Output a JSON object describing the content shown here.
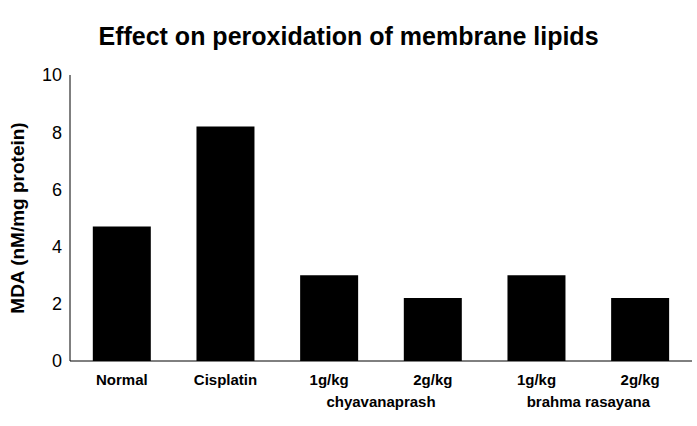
{
  "chart_data": {
    "type": "bar",
    "title": "Effect on peroxidation of membrane lipids",
    "y_label": "MDA (nM/mg protein)",
    "categories": [
      "Normal",
      "Cisplatin",
      "1g/kg",
      "2g/kg",
      "1g/kg",
      "2g/kg"
    ],
    "category_groups": [
      null,
      null,
      "chyavanaprash",
      "chyavanaprash",
      "brahma rasayana",
      "brahma rasayana"
    ],
    "values": [
      4.7,
      8.2,
      3.0,
      2.2,
      3.0,
      2.2
    ],
    "color": "#000000",
    "ylim": [
      0,
      10
    ],
    "yticks": [
      0,
      2,
      4,
      6,
      8,
      10
    ],
    "grid": false
  }
}
